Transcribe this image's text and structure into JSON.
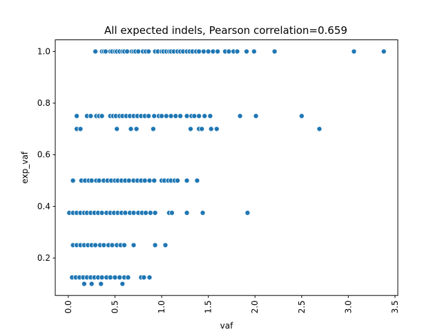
{
  "chart_data": {
    "type": "scatter",
    "title": "All expected indels, Pearson correlation=0.659",
    "xlabel": "vaf",
    "ylabel": "exp_vaf",
    "xlim": [
      -0.14,
      3.53
    ],
    "ylim": [
      0.055,
      1.045
    ],
    "xticks": [
      0.0,
      0.5,
      1.0,
      1.5,
      2.0,
      2.5,
      3.0,
      3.5
    ],
    "xtick_labels": [
      "0.0",
      "0.5",
      "1.0",
      "1.5",
      "2.0",
      "2.5",
      "3.0",
      "3.5"
    ],
    "yticks": [
      0.2,
      0.4,
      0.6,
      0.8,
      1.0
    ],
    "ytick_labels": [
      "0.2",
      "0.4",
      "0.6",
      "0.8",
      "1.0"
    ],
    "grid": false,
    "legend": false,
    "marker_color": "#1f77b4",
    "marker_edge": "#ffffff",
    "points": [
      {
        "y": 1.0,
        "x": [
          0.29,
          0.36,
          0.38,
          0.4,
          0.45,
          0.47,
          0.5,
          0.52,
          0.55,
          0.58,
          0.6,
          0.63,
          0.68,
          0.7,
          0.72,
          0.75,
          0.8,
          0.83,
          0.86,
          0.93,
          0.96,
          1.0,
          1.02,
          1.05,
          1.08,
          1.1,
          1.13,
          1.17,
          1.2,
          1.23,
          1.27,
          1.3,
          1.33,
          1.37,
          1.4,
          1.45,
          1.5,
          1.55,
          1.6,
          1.68,
          1.72,
          1.77,
          1.81,
          1.91,
          1.99,
          2.21,
          3.06,
          3.38
        ]
      },
      {
        "y": 0.75,
        "x": [
          0.09,
          0.2,
          0.24,
          0.3,
          0.33,
          0.36,
          0.45,
          0.48,
          0.51,
          0.55,
          0.58,
          0.62,
          0.66,
          0.7,
          0.74,
          0.78,
          0.82,
          0.86,
          0.92,
          0.97,
          1.0,
          1.05,
          1.1,
          1.15,
          1.2,
          1.27,
          1.32,
          1.35,
          1.4,
          1.46,
          1.52,
          1.84,
          2.01,
          2.5
        ]
      },
      {
        "y": 0.7,
        "x": [
          0.09,
          0.13,
          0.52,
          0.67,
          0.73,
          0.91,
          1.31,
          1.4,
          1.43,
          1.53,
          1.59,
          2.69
        ]
      },
      {
        "y": 0.5,
        "x": [
          0.05,
          0.14,
          0.18,
          0.22,
          0.25,
          0.3,
          0.33,
          0.38,
          0.42,
          0.46,
          0.5,
          0.53,
          0.57,
          0.61,
          0.65,
          0.7,
          0.74,
          0.78,
          0.82,
          0.87,
          0.92,
          1.0,
          1.03,
          1.07,
          1.1,
          1.14,
          1.17,
          1.27,
          1.38
        ]
      },
      {
        "y": 0.375,
        "x": [
          0.01,
          0.05,
          0.09,
          0.13,
          0.17,
          0.2,
          0.24,
          0.28,
          0.32,
          0.36,
          0.41,
          0.45,
          0.49,
          0.53,
          0.57,
          0.61,
          0.66,
          0.7,
          0.75,
          0.79,
          0.83,
          0.88,
          0.93,
          1.08,
          1.11,
          1.27,
          1.44,
          1.92
        ]
      },
      {
        "y": 0.25,
        "x": [
          0.05,
          0.09,
          0.13,
          0.17,
          0.21,
          0.25,
          0.29,
          0.34,
          0.38,
          0.43,
          0.47,
          0.52,
          0.56,
          0.6,
          0.7,
          0.93,
          1.04
        ]
      },
      {
        "y": 0.125,
        "x": [
          0.04,
          0.08,
          0.12,
          0.16,
          0.2,
          0.24,
          0.28,
          0.32,
          0.36,
          0.41,
          0.45,
          0.5,
          0.55,
          0.6,
          0.64,
          0.78,
          0.81,
          0.87
        ]
      },
      {
        "y": 0.1,
        "x": [
          0.17,
          0.25,
          0.35,
          0.58
        ]
      }
    ]
  }
}
